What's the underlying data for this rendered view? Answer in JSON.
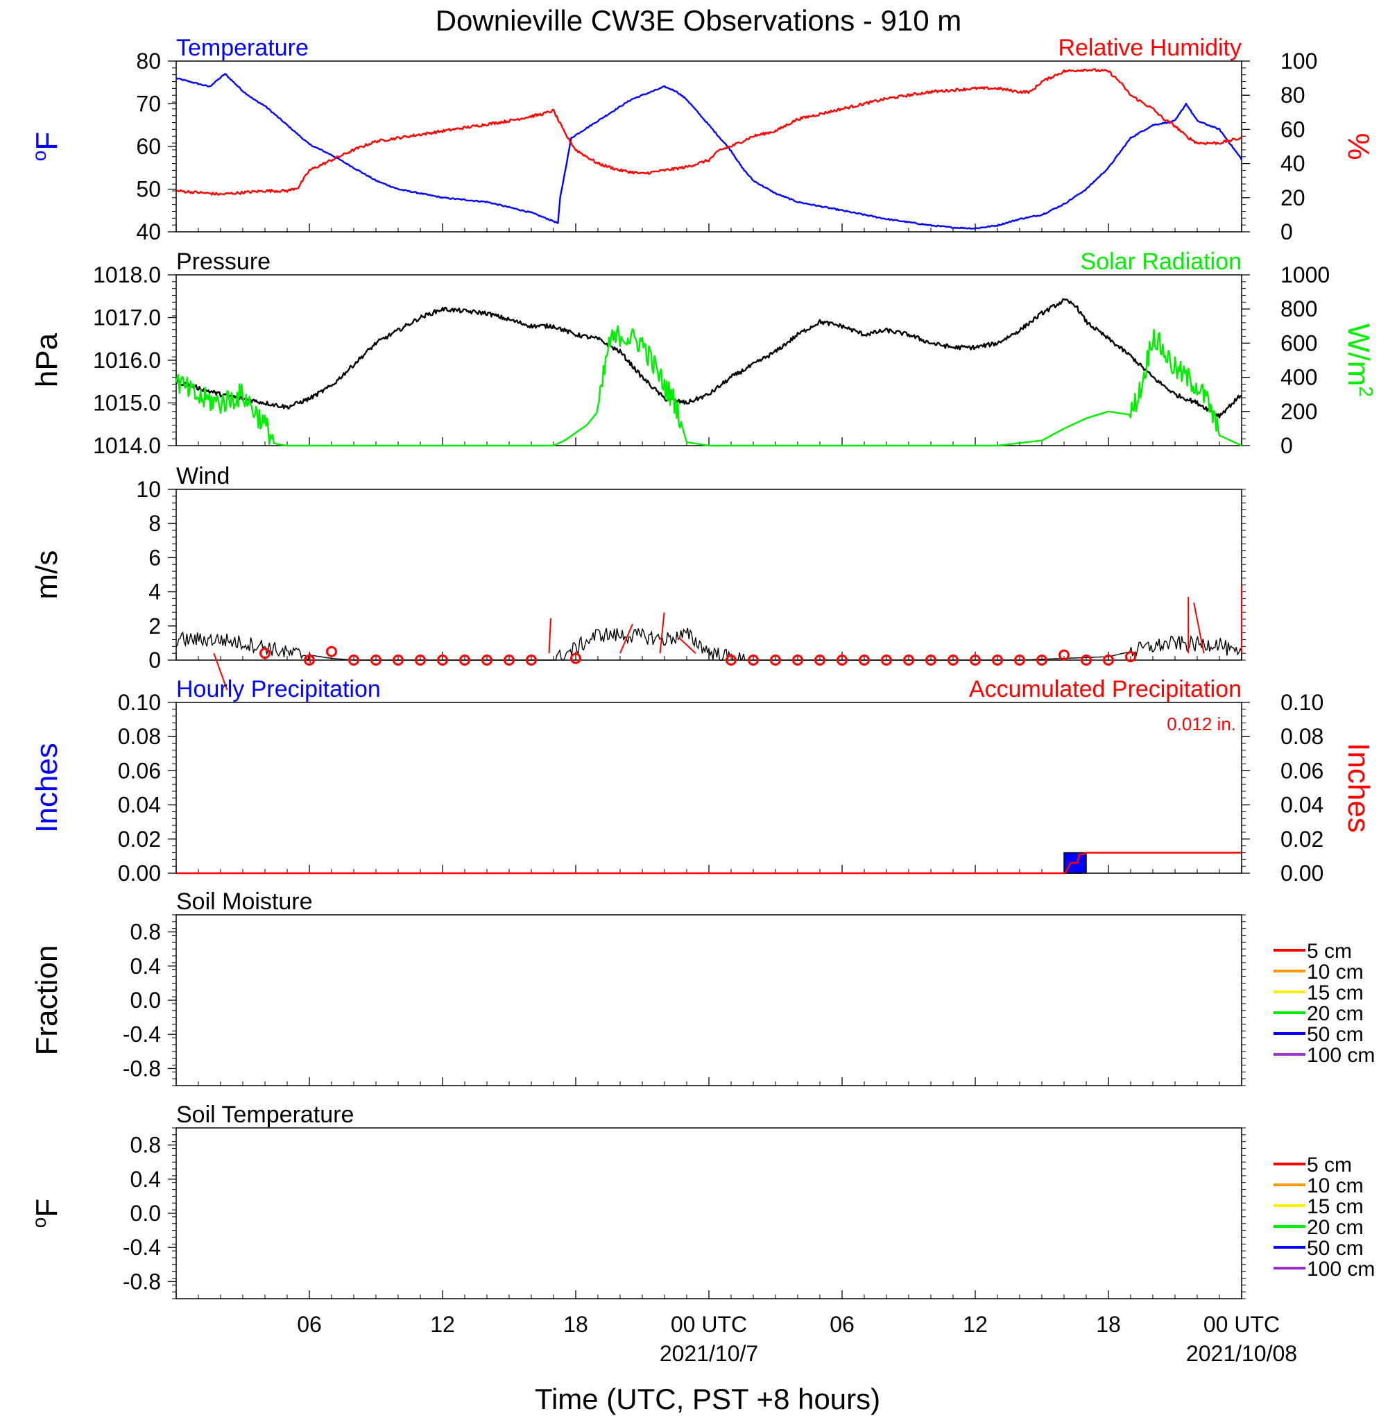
{
  "title": "Downieville CW3E Observations - 910 m",
  "x_axis": {
    "label": "Time (UTC, PST +8 hours)",
    "range_hours": [
      -24,
      24
    ],
    "ticks": [
      {
        "h": -18,
        "label": "06"
      },
      {
        "h": -12,
        "label": "12"
      },
      {
        "h": -6,
        "label": "18"
      },
      {
        "h": 0,
        "label": "00 UTC"
      },
      {
        "h": 6,
        "label": "06"
      },
      {
        "h": 12,
        "label": "12"
      },
      {
        "h": 18,
        "label": "18"
      },
      {
        "h": 24,
        "label": "00 UTC"
      }
    ],
    "dates": [
      {
        "h": 0,
        "label": "2021/10/7"
      },
      {
        "h": 24,
        "label": "2021/10/08"
      }
    ]
  },
  "colors": {
    "temperature": "#0000ff",
    "humidity": "#ff0000",
    "pressure": "#000000",
    "solar": "#00ee00",
    "wind": "#000000",
    "barb": "#ff0000",
    "hourly_precip_fill": "#0000ff",
    "accum_precip": "#ff0000",
    "soil_5": "#ff0000",
    "soil_10": "#ff9900",
    "soil_15": "#ffee00",
    "soil_20": "#00ee00",
    "soil_50": "#0000ff",
    "soil_100": "#9933cc"
  },
  "chart_data": [
    {
      "type": "line",
      "panel": "temp_rh",
      "title_left": "Temperature",
      "title_right": "Relative Humidity",
      "ylabel_left": "oF",
      "ylabel_right": "%",
      "ylim_left": [
        40,
        80
      ],
      "yticks_left": [
        "40",
        "50",
        "60",
        "70",
        "80"
      ],
      "ylim_right": [
        0,
        100
      ],
      "yticks_right": [
        "0",
        "20",
        "40",
        "60",
        "80",
        "100"
      ],
      "series": [
        {
          "name": "Temperature",
          "axis": "left",
          "x": [
            -24,
            -22.5,
            -21.8,
            -21,
            -20.5,
            -20,
            -19,
            -18,
            -17,
            -16,
            -15,
            -14,
            -13,
            -12,
            -10,
            -8,
            -7,
            -6.8,
            -6.7,
            -6.2,
            -5,
            -3.5,
            -2,
            -1.5,
            -1,
            0,
            1,
            1.5,
            2,
            3,
            4,
            6,
            8,
            10,
            11,
            12,
            13,
            14,
            15,
            16,
            17,
            18,
            19,
            20,
            21,
            21.5,
            22,
            23,
            24
          ],
          "y": [
            76,
            74,
            77,
            73,
            71,
            69.5,
            65,
            60.5,
            58,
            55,
            52,
            50,
            49,
            48,
            47,
            44.5,
            42.5,
            42,
            48,
            62,
            66,
            71,
            74,
            73,
            71,
            65,
            59,
            55,
            52,
            49,
            47,
            45,
            43,
            41.5,
            41,
            40.8,
            41.5,
            43,
            44,
            46.5,
            50,
            55,
            62,
            65,
            66,
            70,
            66,
            64,
            57
          ]
        },
        {
          "name": "Relative Humidity",
          "axis": "right",
          "x": [
            -24,
            -22,
            -20,
            -19,
            -18.5,
            -18,
            -17,
            -16,
            -15,
            -13,
            -11,
            -9,
            -7.5,
            -7,
            -6.5,
            -6,
            -5,
            -4,
            -3,
            -2,
            -1,
            0,
            0.5,
            1,
            2,
            3,
            4,
            6,
            8,
            10,
            12,
            13,
            14,
            14.5,
            15,
            16,
            17,
            18,
            18.5,
            19,
            20,
            20.5,
            21,
            21.5,
            22,
            23,
            24
          ],
          "y": [
            24,
            22,
            24,
            24,
            26,
            36,
            42,
            48,
            53,
            57,
            61,
            65,
            69,
            71,
            58,
            48,
            40,
            36,
            34,
            36,
            38,
            42,
            48,
            50,
            56,
            59,
            66,
            72,
            78,
            82,
            84,
            84,
            82,
            82,
            88,
            94,
            95,
            94,
            88,
            80,
            72,
            66,
            62,
            56,
            52,
            52,
            55
          ]
        }
      ]
    },
    {
      "type": "line",
      "panel": "pressure_solar",
      "title_left": "Pressure",
      "title_right": "Solar Radiation",
      "ylabel_left": "hPa",
      "ylabel_right": "W/m2",
      "ylim_left": [
        1014,
        1018
      ],
      "yticks_left": [
        "1014.0",
        "1015.0",
        "1016.0",
        "1017.0",
        "1018.0"
      ],
      "ylim_right": [
        0,
        1000
      ],
      "yticks_right": [
        "0",
        "200",
        "400",
        "600",
        "800",
        "1000"
      ],
      "series": [
        {
          "name": "Pressure",
          "axis": "left",
          "x": [
            -24,
            -22,
            -20,
            -19,
            -18,
            -17,
            -15,
            -13,
            -12,
            -10,
            -8,
            -7,
            -6,
            -5,
            -4,
            -3,
            -2,
            -1,
            0,
            1,
            2,
            3,
            4,
            5,
            6,
            7,
            8,
            9,
            10,
            11,
            12,
            13,
            14,
            15,
            16,
            16.5,
            17,
            18,
            19,
            20,
            21,
            22,
            23,
            24
          ],
          "y": [
            1015.5,
            1015.2,
            1015.0,
            1014.9,
            1015.1,
            1015.4,
            1016.4,
            1017.0,
            1017.2,
            1017.1,
            1016.8,
            1016.8,
            1016.6,
            1016.5,
            1016.2,
            1015.6,
            1015.1,
            1015.0,
            1015.2,
            1015.6,
            1015.9,
            1016.2,
            1016.6,
            1016.9,
            1016.8,
            1016.6,
            1016.7,
            1016.6,
            1016.4,
            1016.3,
            1016.3,
            1016.4,
            1016.7,
            1017.1,
            1017.4,
            1017.3,
            1016.9,
            1016.5,
            1016.1,
            1015.6,
            1015.2,
            1015.0,
            1014.7,
            1015.2
          ],
          "noise": 0.05
        },
        {
          "name": "Solar Radiation",
          "axis": "right",
          "x": [
            -24,
            -23,
            -22,
            -21,
            -20,
            -19.5,
            -19,
            -18,
            -10,
            -7,
            -6.5,
            -5.5,
            -5,
            -4.5,
            -4,
            -3,
            -2,
            -1.5,
            -1,
            0,
            10,
            13,
            15,
            16,
            17,
            18,
            19,
            19.5,
            20,
            21,
            22,
            22.5,
            23,
            24
          ],
          "y": [
            380,
            280,
            250,
            300,
            120,
            10,
            0,
            0,
            0,
            0,
            30,
            120,
            200,
            600,
            650,
            600,
            350,
            250,
            20,
            0,
            0,
            0,
            30,
            100,
            160,
            200,
            180,
            350,
            650,
            450,
            350,
            250,
            60,
            0
          ],
          "noise": 70,
          "noise_ranges": [
            [
              -24,
              -19.5
            ],
            [
              -5,
              -1.2
            ],
            [
              19,
              23
            ]
          ]
        }
      ]
    },
    {
      "type": "line",
      "panel": "wind",
      "title_left": "Wind",
      "ylabel_left": "m/s",
      "ylim_left": [
        0,
        10
      ],
      "yticks_left": [
        "0",
        "2",
        "4",
        "6",
        "8",
        "10"
      ],
      "series": [
        {
          "name": "Wind",
          "axis": "left",
          "x": [
            -24,
            -22,
            -20,
            -19,
            -18,
            -17,
            -16,
            -7,
            -6.5,
            -5,
            -3,
            -2,
            -1,
            -0.5,
            0,
            0.8,
            1.5,
            14,
            16,
            18,
            19,
            20,
            21,
            22,
            23,
            23.5,
            24
          ],
          "y": [
            1.2,
            1.2,
            0.8,
            0.4,
            0.3,
            0.1,
            0,
            0,
            0.3,
            1.5,
            1.4,
            1.2,
            1.5,
            1.0,
            0.5,
            0.2,
            0,
            0,
            0.1,
            0.2,
            0.5,
            0.8,
            1.0,
            0.9,
            1.0,
            0.5,
            0.2
          ],
          "noise": 0.45
        }
      ],
      "calm_markers_hours": [
        -20,
        -18,
        -17,
        -16,
        -15,
        -14,
        -13,
        -12,
        -11,
        -10,
        -9,
        -8,
        -6,
        1,
        2,
        3,
        4,
        5,
        6,
        7,
        8,
        9,
        10,
        11,
        12,
        13,
        14,
        15,
        16,
        17,
        18,
        19
      ],
      "calm_markers_values": [
        0.4,
        0,
        0.5,
        0,
        0,
        0,
        0,
        0,
        0,
        0,
        0,
        0,
        0.1,
        0,
        0,
        0,
        0,
        0,
        0,
        0,
        0,
        0,
        0,
        0,
        0,
        0,
        0,
        0,
        0.3,
        0,
        0,
        0.2
      ],
      "barbs": [
        {
          "h": -22.3,
          "dx": 1.6,
          "dy": -1.9
        },
        {
          "h": -18.0,
          "dx": 0.1,
          "dy": -0.5
        },
        {
          "h": -7.2,
          "dx": 0.2,
          "dy": 1.8
        },
        {
          "h": -4.0,
          "dx": 1.5,
          "dy": 1.5
        },
        {
          "h": -2.2,
          "dx": 0.5,
          "dy": 2.1
        },
        {
          "h": -0.6,
          "dx": -2.0,
          "dy": 0.8
        },
        {
          "h": 21.6,
          "dx": 0.0,
          "dy": 2.9
        },
        {
          "h": 22.3,
          "dx": -1.2,
          "dy": 2.6
        },
        {
          "h": 24.0,
          "dx": 0.0,
          "dy": 3.5
        }
      ]
    },
    {
      "type": "bar",
      "panel": "precip",
      "title_left": "Hourly Precipitation",
      "title_right": "Accumulated Precipitation",
      "total_label": "0.012 in.",
      "ylabel_left": "Inches",
      "ylabel_right": "Inches",
      "ylim_left": [
        0,
        0.1
      ],
      "yticks_left": [
        "0.00",
        "0.02",
        "0.04",
        "0.06",
        "0.08",
        "0.10"
      ],
      "ylim_right": [
        0,
        0.1
      ],
      "yticks_right": [
        "0.00",
        "0.02",
        "0.04",
        "0.06",
        "0.08",
        "0.10"
      ],
      "hourly": [
        {
          "h": 16,
          "value": 0.012
        }
      ],
      "accumulated": {
        "x": [
          -24,
          16.05,
          16.3,
          16.4,
          16.6,
          16.7,
          16.9,
          17.0,
          24
        ],
        "y": [
          0,
          0,
          0.006,
          0.006,
          0.006,
          0.011,
          0.011,
          0.012,
          0.012
        ]
      }
    },
    {
      "type": "line",
      "panel": "soil_moisture",
      "title_left": "Soil Moisture",
      "ylabel_left": "Fraction",
      "ylim_left": [
        -1,
        1
      ],
      "yticks_left": [
        "-0.8",
        "-0.4",
        "0.0",
        "0.4",
        "0.8"
      ],
      "legend": [
        "5 cm",
        "10 cm",
        "15 cm",
        "20 cm",
        "50 cm",
        "100 cm"
      ]
    },
    {
      "type": "line",
      "panel": "soil_temperature",
      "title_left": "Soil Temperature",
      "ylabel_left": "oF",
      "ylim_left": [
        -1,
        1
      ],
      "yticks_left": [
        "-0.8",
        "-0.4",
        "0.0",
        "0.4",
        "0.8"
      ],
      "legend": [
        "5 cm",
        "10 cm",
        "15 cm",
        "20 cm",
        "50 cm",
        "100 cm"
      ]
    }
  ]
}
